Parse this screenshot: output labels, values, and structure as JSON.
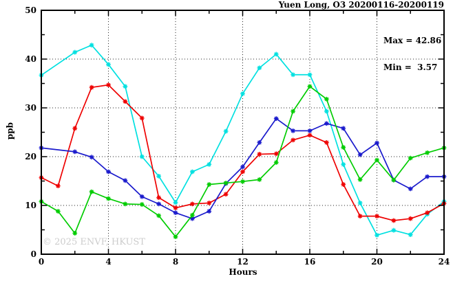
{
  "page": {
    "background": "#ffffff"
  },
  "header": {
    "title": "Yuen Long, O3 20200116-20200119"
  },
  "chart_data": {
    "type": "line",
    "title": "Yuen Long, O3 20200116-20200119",
    "xlabel": "Hours",
    "ylabel": "ppb",
    "xlim": [
      0,
      24
    ],
    "ylim": [
      0,
      50
    ],
    "x_major_ticks": [
      0,
      4,
      8,
      12,
      16,
      20,
      24
    ],
    "x_minor_tick_step": 2,
    "y_major_ticks": [
      0,
      10,
      20,
      30,
      40,
      50
    ],
    "y_minor_tick_step": 5,
    "grid": {
      "style": "dotted",
      "horizontal_at": [
        10,
        20,
        30,
        40
      ],
      "vertical_at": [
        4,
        8,
        12,
        16,
        20
      ]
    },
    "annotations": {
      "max_label": "Max = 42.86",
      "min_label": "Min =  3.57",
      "max_value": 42.86,
      "min_value": 3.57
    },
    "watermark": "© 2025 ENVF, HKUST",
    "legend": "none",
    "x": [
      0,
      1,
      2,
      3,
      4,
      5,
      6,
      7,
      8,
      9,
      10,
      11,
      12,
      13,
      14,
      15,
      16,
      17,
      18,
      19,
      20,
      21,
      22,
      23,
      24
    ],
    "series": [
      {
        "name": "cyan",
        "color": "#00e0e0",
        "values": [
          36.7,
          null,
          41.4,
          42.86,
          38.9,
          34.4,
          20.0,
          16.0,
          10.6,
          16.9,
          18.4,
          25.2,
          32.9,
          38.2,
          41.0,
          36.8,
          36.8,
          29.3,
          18.4,
          10.5,
          3.9,
          4.9,
          4.0,
          8.2,
          10.8
        ]
      },
      {
        "name": "red",
        "color": "#ee0000",
        "values": [
          15.7,
          14.0,
          25.8,
          34.2,
          34.7,
          31.3,
          27.9,
          11.6,
          9.5,
          10.3,
          10.5,
          12.3,
          16.9,
          20.5,
          20.6,
          23.4,
          24.4,
          22.9,
          14.3,
          7.8,
          7.8,
          6.9,
          7.3,
          8.5,
          10.4
        ]
      },
      {
        "name": "blue",
        "color": "#1a1acc",
        "values": [
          21.8,
          null,
          21.0,
          19.9,
          16.9,
          15.1,
          11.8,
          10.3,
          8.5,
          7.3,
          8.8,
          14.5,
          17.9,
          22.9,
          27.8,
          25.3,
          25.3,
          26.8,
          25.8,
          20.4,
          22.8,
          15.2,
          13.4,
          15.9,
          15.9
        ]
      },
      {
        "name": "green",
        "color": "#00cc00",
        "values": [
          10.8,
          8.8,
          4.3,
          12.8,
          11.4,
          10.3,
          10.2,
          7.9,
          3.57,
          8.0,
          14.3,
          14.6,
          14.9,
          15.3,
          18.8,
          29.3,
          34.4,
          31.8,
          21.9,
          15.3,
          19.3,
          15.2,
          19.7,
          20.8,
          21.8
        ]
      }
    ]
  }
}
